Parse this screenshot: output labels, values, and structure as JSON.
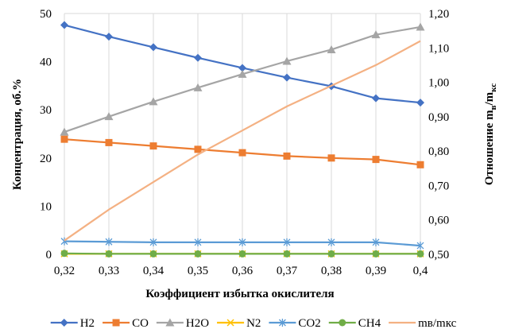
{
  "chart_data": {
    "type": "line",
    "x": [
      0.32,
      0.33,
      0.34,
      0.35,
      0.36,
      0.37,
      0.38,
      0.39,
      0.4
    ],
    "x_tick_labels": [
      "0,32",
      "0,33",
      "0,34",
      "0,35",
      "0,36",
      "0,37",
      "0,38",
      "0,39",
      "0,4"
    ],
    "xlabel": "Коэффициент избытка окислителя",
    "ylabel": "Концентрация, об.%",
    "ylabel2": "Отношение m",
    "ylabel2_sub1": "в",
    "ylabel2_mid": "/m",
    "ylabel2_sub2": "кс",
    "ylim": [
      0,
      50
    ],
    "y_ticks": [
      0,
      10,
      20,
      30,
      40,
      50
    ],
    "y_tick_labels": [
      "0",
      "10",
      "20",
      "30",
      "40",
      "50"
    ],
    "y2lim": [
      0.5,
      1.2
    ],
    "y2_ticks": [
      0.5,
      0.6,
      0.7,
      0.8,
      0.9,
      1.0,
      1.1,
      1.2
    ],
    "y2_tick_labels": [
      "0,50",
      "0,60",
      "0,70",
      "0,80",
      "0,90",
      "1,00",
      "1,10",
      "1,20"
    ],
    "grid": "vertical",
    "legend_position": "bottom",
    "series": [
      {
        "name": "H2",
        "axis": "left",
        "color": "#4472C4",
        "marker": "diamond",
        "values": [
          47.6,
          45.2,
          43.0,
          40.8,
          38.7,
          36.7,
          34.9,
          32.4,
          31.5
        ]
      },
      {
        "name": "CO",
        "axis": "left",
        "color": "#ED7D31",
        "marker": "square",
        "values": [
          23.9,
          23.2,
          22.5,
          21.8,
          21.1,
          20.4,
          20.0,
          19.7,
          18.6
        ]
      },
      {
        "name": "H2O",
        "axis": "left",
        "color": "#A5A5A5",
        "marker": "triangle",
        "values": [
          25.4,
          28.6,
          31.7,
          34.6,
          37.4,
          40.1,
          42.5,
          45.6,
          47.2
        ]
      },
      {
        "name": "N2",
        "axis": "left",
        "color": "#FFC000",
        "marker": "x",
        "values": [
          0.1,
          0.1,
          0.1,
          0.1,
          0.1,
          0.1,
          0.1,
          0.1,
          0.1
        ]
      },
      {
        "name": "CO2",
        "axis": "left",
        "color": "#5B9BD5",
        "marker": "star",
        "values": [
          2.7,
          2.6,
          2.5,
          2.5,
          2.5,
          2.5,
          2.5,
          2.5,
          1.8
        ]
      },
      {
        "name": "CH4",
        "axis": "left",
        "color": "#70AD47",
        "marker": "circle",
        "values": [
          0.2,
          0.1,
          0.1,
          0.1,
          0.1,
          0.1,
          0.1,
          0.1,
          0.1
        ]
      },
      {
        "name": "mв/mкс",
        "axis": "right",
        "color": "#F4B183",
        "marker": "none",
        "values": [
          0.54,
          0.63,
          0.71,
          0.79,
          0.86,
          0.93,
          0.99,
          1.05,
          1.12
        ]
      }
    ]
  }
}
